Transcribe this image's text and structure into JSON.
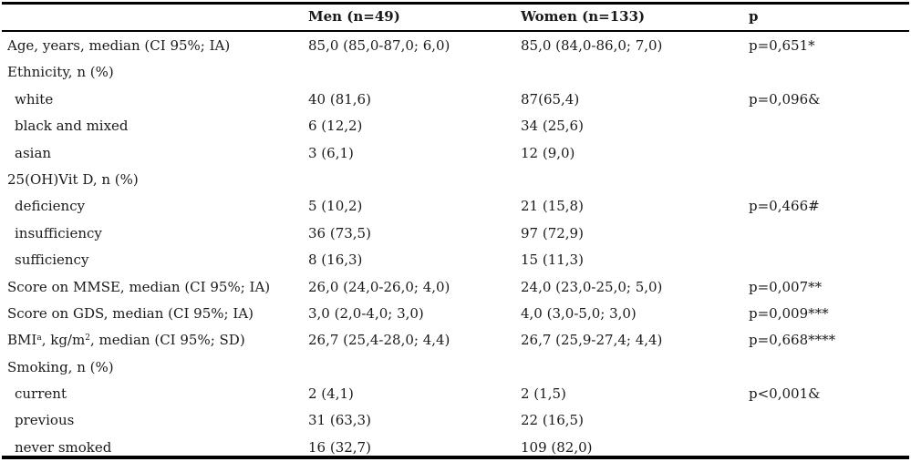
{
  "table": {
    "headers": {
      "label": "",
      "men": "Men (n=49)",
      "women": "Women (n=133)",
      "p": "p"
    },
    "rows": [
      {
        "label": "Age, years, median (CI 95%; IA)",
        "indent": false,
        "men": "85,0 (85,0-87,0; 6,0)",
        "women": "85,0 (84,0-86,0; 7,0)",
        "p": "p=0,651*"
      },
      {
        "label": "Ethnicity, n (%)",
        "indent": false,
        "men": "",
        "women": "",
        "p": ""
      },
      {
        "label": "white",
        "indent": true,
        "men": "40 (81,6)",
        "women": "87(65,4)",
        "p": "p=0,096&"
      },
      {
        "label": "black and mixed",
        "indent": true,
        "men": "6 (12,2)",
        "women": "34 (25,6)",
        "p": ""
      },
      {
        "label": "asian",
        "indent": true,
        "men": "3 (6,1)",
        "women": "12 (9,0)",
        "p": ""
      },
      {
        "label": "25(OH)Vit D, n (%)",
        "indent": false,
        "men": "",
        "women": "",
        "p": ""
      },
      {
        "label": "deficiency",
        "indent": true,
        "men": "5 (10,2)",
        "women": "21 (15,8)",
        "p": "p=0,466#"
      },
      {
        "label": "insufficiency",
        "indent": true,
        "men": "36 (73,5)",
        "women": "97 (72,9)",
        "p": ""
      },
      {
        "label": "sufficiency",
        "indent": true,
        "men": "8 (16,3)",
        "women": "15 (11,3)",
        "p": ""
      },
      {
        "label": "Score on MMSE, median (CI 95%;  IA)",
        "indent": false,
        "men": "26,0 (24,0-26,0; 4,0)",
        "women": "24,0 (23,0-25,0; 5,0)",
        "p": "p=0,007**"
      },
      {
        "label": "Score on GDS, median (CI 95%; IA)",
        "indent": false,
        "men": "3,0 (2,0-4,0; 3,0)",
        "women": "4,0 (3,0-5,0; 3,0)",
        "p": "p=0,009***"
      },
      {
        "label": "BMI",
        "label_sup": "a",
        "label_rest": ", kg/m",
        "label_sup2": "2",
        "label_tail": ", median (CI 95%; SD)",
        "indent": false,
        "men": "26,7 (25,4-28,0; 4,4)",
        "women": "26,7 (25,9-27,4; 4,4)",
        "p": "p=0,668****",
        "special": true
      },
      {
        "label": "Smoking, n (%)",
        "indent": false,
        "men": "",
        "women": "",
        "p": ""
      },
      {
        "label": "current",
        "indent": true,
        "men": "2 (4,1)",
        "women": "2 (1,5)",
        "p": "p<0,001&"
      },
      {
        "label": "previous",
        "indent": true,
        "men": "31 (63,3)",
        "women": "22 (16,5)",
        "p": ""
      },
      {
        "label": "never smoked",
        "indent": true,
        "men": "16 (32,7)",
        "women": "109 (82,0)",
        "p": ""
      }
    ]
  }
}
